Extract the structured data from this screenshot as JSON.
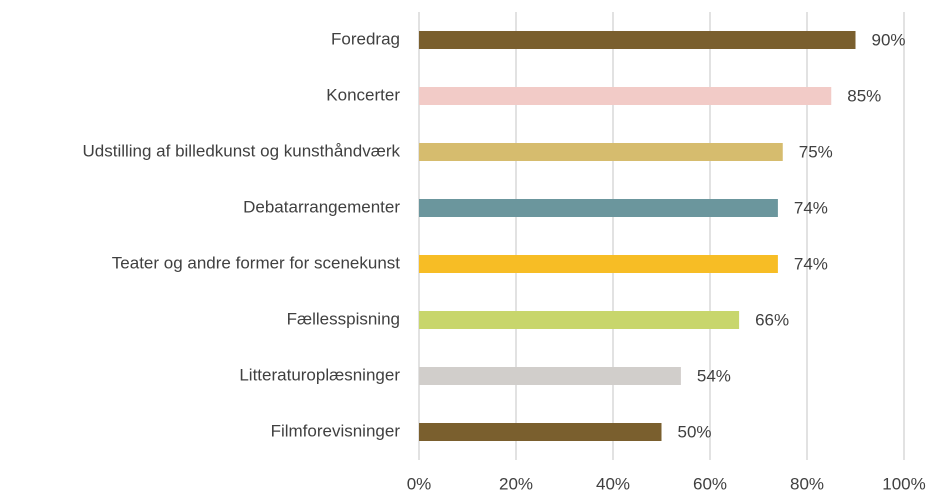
{
  "chart_data": {
    "type": "bar",
    "orientation": "horizontal",
    "categories": [
      "Foredrag",
      "Koncerter",
      "Udstilling af billedkunst og kunsthåndværk",
      "Debatarrangementer",
      "Teater og andre former for scenekunst",
      "Fællesspisning",
      "Litteraturoplæsninger",
      "Filmforevisninger"
    ],
    "values": [
      90,
      85,
      75,
      74,
      74,
      66,
      54,
      50
    ],
    "value_labels": [
      "90%",
      "85%",
      "75%",
      "74%",
      "74%",
      "66%",
      "54%",
      "50%"
    ],
    "colors": [
      "#7a5f2e",
      "#f2cbc7",
      "#d6bc6e",
      "#6b969d",
      "#f7bd25",
      "#c8d66c",
      "#d1cecb",
      "#7a5f2e"
    ],
    "xlim": [
      0,
      100
    ],
    "xticks": [
      {
        "value": 0,
        "label": "0%"
      },
      {
        "value": 20,
        "label": "20%"
      },
      {
        "value": 40,
        "label": "40%"
      },
      {
        "value": 60,
        "label": "60%"
      },
      {
        "value": 80,
        "label": "80%"
      },
      {
        "value": 100,
        "label": "100%"
      }
    ],
    "grid": true
  }
}
